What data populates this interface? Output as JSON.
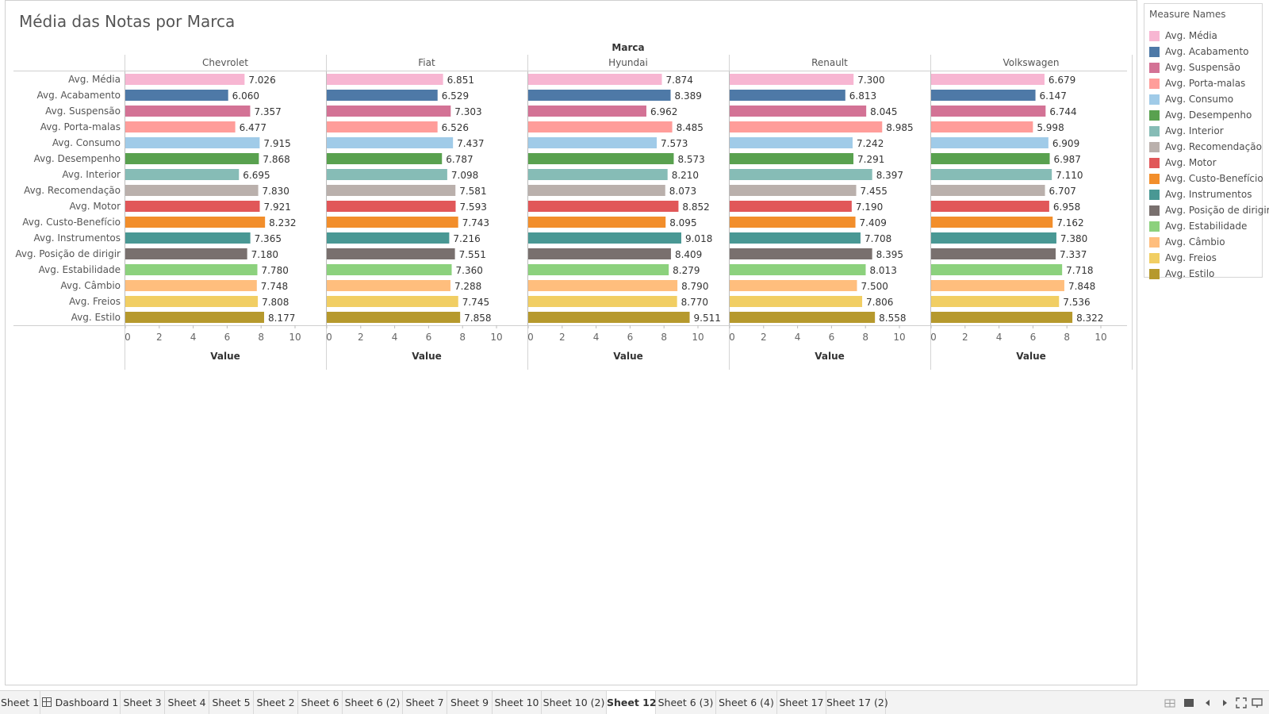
{
  "chart_data": {
    "type": "bar",
    "title": "Média das Notas por Marca",
    "column_header": "Marca",
    "xlabel": "Value",
    "xlim": [
      0,
      10
    ],
    "xticks": [
      0,
      2,
      4,
      6,
      8,
      10
    ],
    "categories": [
      "Avg. Média",
      "Avg. Acabamento",
      "Avg. Suspensão",
      "Avg. Porta-malas",
      "Avg. Consumo",
      "Avg. Desempenho",
      "Avg. Interior",
      "Avg. Recomendação",
      "Avg. Motor",
      "Avg. Custo-Benefício",
      "Avg. Instrumentos",
      "Avg. Posição de dirigir",
      "Avg. Estabilidade",
      "Avg. Câmbio",
      "Avg. Freios",
      "Avg. Estilo"
    ],
    "colors": [
      "#f7b6d2",
      "#4e79a7",
      "#d37295",
      "#ff9d9a",
      "#a0cbe8",
      "#59a14f",
      "#86bcb6",
      "#bab0ac",
      "#e15759",
      "#f28e2b",
      "#499894",
      "#79706e",
      "#8cd17d",
      "#ffbe7d",
      "#f1ce63",
      "#b6992d"
    ],
    "series": [
      {
        "name": "Chevrolet",
        "values": [
          7.026,
          6.06,
          7.357,
          6.477,
          7.915,
          7.868,
          6.695,
          7.83,
          7.921,
          8.232,
          7.365,
          7.18,
          7.78,
          7.748,
          7.808,
          8.177
        ],
        "labels": [
          "7.026",
          "6.060",
          "7.357",
          "6.477",
          "7.915",
          "7.868",
          "6.695",
          "7.830",
          "7.921",
          "8.232",
          "7.365",
          "7.180",
          "7.780",
          "7.748",
          "7.808",
          "8.177"
        ]
      },
      {
        "name": "Fiat",
        "values": [
          6.851,
          6.529,
          7.303,
          6.526,
          7.437,
          6.787,
          7.098,
          7.581,
          7.593,
          7.743,
          7.216,
          7.551,
          7.36,
          7.288,
          7.745,
          7.858
        ],
        "labels": [
          "6.851",
          "6.529",
          "7.303",
          "6.526",
          "7.437",
          "6.787",
          "7.098",
          "7.581",
          "7.593",
          "7.743",
          "7.216",
          "7.551",
          "7.360",
          "7.288",
          "7.745",
          "7.858"
        ]
      },
      {
        "name": "Hyundai",
        "values": [
          7.874,
          8.389,
          6.962,
          8.485,
          7.573,
          8.573,
          8.21,
          8.073,
          8.852,
          8.095,
          9.018,
          8.409,
          8.279,
          8.79,
          8.77,
          9.511
        ],
        "labels": [
          "7.874",
          "8.389",
          "6.962",
          "8.485",
          "7.573",
          "8.573",
          "8.210",
          "8.073",
          "8.852",
          "8.095",
          "9.018",
          "8.409",
          "8.279",
          "8.790",
          "8.770",
          "9.511"
        ]
      },
      {
        "name": "Renault",
        "values": [
          7.3,
          6.813,
          8.045,
          8.985,
          7.242,
          7.291,
          8.397,
          7.455,
          7.19,
          7.409,
          7.708,
          8.395,
          8.013,
          7.5,
          7.806,
          8.558
        ],
        "labels": [
          "7.300",
          "6.813",
          "8.045",
          "8.985",
          "7.242",
          "7.291",
          "8.397",
          "7.455",
          "7.190",
          "7.409",
          "7.708",
          "8.395",
          "8.013",
          "7.500",
          "7.806",
          "8.558"
        ]
      },
      {
        "name": "Volkswagen",
        "values": [
          6.679,
          6.147,
          6.744,
          5.998,
          6.909,
          6.987,
          7.11,
          6.707,
          6.958,
          7.162,
          7.38,
          7.337,
          7.718,
          7.848,
          7.536,
          8.322
        ],
        "labels": [
          "6.679",
          "6.147",
          "6.744",
          "5.998",
          "6.909",
          "6.987",
          "7.110",
          "6.707",
          "6.958",
          "7.162",
          "7.380",
          "7.337",
          "7.718",
          "7.848",
          "7.536",
          "8.322"
        ]
      }
    ],
    "grid": false,
    "legend": {
      "title": "Measure Names",
      "placement": "right"
    }
  },
  "tabs": [
    {
      "label": "Sheet 1"
    },
    {
      "label": "Dashboard 1",
      "icon": "dashboard-icon"
    },
    {
      "label": "Sheet 3"
    },
    {
      "label": "Sheet 4"
    },
    {
      "label": "Sheet 5"
    },
    {
      "label": "Sheet 2"
    },
    {
      "label": "Sheet 6"
    },
    {
      "label": "Sheet 6 (2)"
    },
    {
      "label": "Sheet 7"
    },
    {
      "label": "Sheet 9"
    },
    {
      "label": "Sheet 10"
    },
    {
      "label": "Sheet 10 (2)"
    },
    {
      "label": "Sheet 12",
      "active": true
    },
    {
      "label": "Sheet 6 (3)"
    },
    {
      "label": "Sheet 6 (4)"
    },
    {
      "label": "Sheet 17"
    },
    {
      "label": "Sheet 17 (2)"
    }
  ],
  "controls": [
    "grid-view-icon",
    "filmstrip-icon",
    "prev-sheet-icon",
    "next-sheet-icon",
    "fullscreen-icon",
    "presentation-icon"
  ]
}
